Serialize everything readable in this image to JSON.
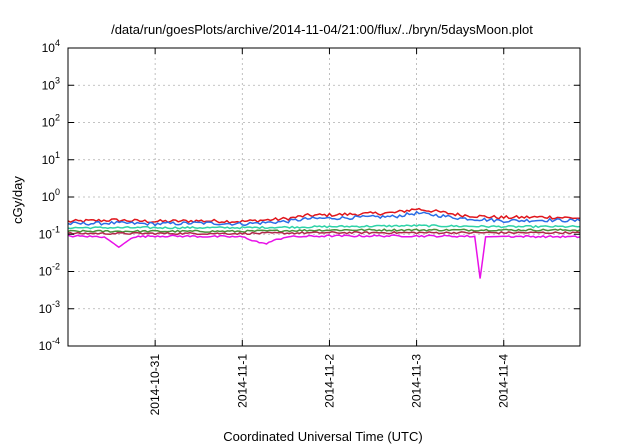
{
  "chart_data": {
    "type": "line",
    "title": "/data/run/goesPlots/archive/2014-11-04/21:00/flux/../bryn/5daysMoon.plot",
    "xlabel": "Coordinated Universal Time (UTC)",
    "ylabel": "cGy/day",
    "yscale": "log",
    "ylim": [
      0.0001,
      10000
    ],
    "xlim": [
      "2014-10-30T00:00",
      "2014-11-04T21:00"
    ],
    "grid": true,
    "y_ticks": [
      {
        "value": 0.0001,
        "base": "10",
        "exp": "-4"
      },
      {
        "value": 0.001,
        "base": "10",
        "exp": "-3"
      },
      {
        "value": 0.01,
        "base": "10",
        "exp": "-2"
      },
      {
        "value": 0.1,
        "base": "10",
        "exp": "-1"
      },
      {
        "value": 1,
        "base": "10",
        "exp": "0"
      },
      {
        "value": 10,
        "base": "10",
        "exp": "1"
      },
      {
        "value": 100,
        "base": "10",
        "exp": "2"
      },
      {
        "value": 1000,
        "base": "10",
        "exp": "3"
      },
      {
        "value": 10000,
        "base": "10",
        "exp": "4"
      }
    ],
    "x_ticks": [
      {
        "value": "2014-10-31T00:00",
        "label": "2014-10-31"
      },
      {
        "value": "2014-11-01T00:00",
        "label": "2014-11-1"
      },
      {
        "value": "2014-11-02T00:00",
        "label": "2014-11-2"
      },
      {
        "value": "2014-11-03T00:00",
        "label": "2014-11-3"
      },
      {
        "value": "2014-11-04T00:00",
        "label": "2014-11-4"
      }
    ],
    "series": [
      {
        "color": "#e0161c",
        "points": [
          [
            "2014-10-30T00:00",
            0.22
          ],
          [
            "2014-10-30T12:00",
            0.24
          ],
          [
            "2014-10-31T00:00",
            0.22
          ],
          [
            "2014-10-31T12:00",
            0.23
          ],
          [
            "2014-11-01T00:00",
            0.22
          ],
          [
            "2014-11-01T12:00",
            0.26
          ],
          [
            "2014-11-01T18:00",
            0.32
          ],
          [
            "2014-11-02T00:00",
            0.33
          ],
          [
            "2014-11-02T12:00",
            0.36
          ],
          [
            "2014-11-02T18:00",
            0.38
          ],
          [
            "2014-11-03T00:00",
            0.48
          ],
          [
            "2014-11-03T06:00",
            0.4
          ],
          [
            "2014-11-03T12:00",
            0.33
          ],
          [
            "2014-11-03T18:00",
            0.3
          ],
          [
            "2014-11-04T00:00",
            0.28
          ],
          [
            "2014-11-04T12:00",
            0.29
          ],
          [
            "2014-11-04T21:00",
            0.27
          ]
        ]
      },
      {
        "color": "#2a6de6",
        "points": [
          [
            "2014-10-30T00:00",
            0.19
          ],
          [
            "2014-10-30T12:00",
            0.2
          ],
          [
            "2014-10-31T00:00",
            0.19
          ],
          [
            "2014-10-31T12:00",
            0.2
          ],
          [
            "2014-11-01T00:00",
            0.19
          ],
          [
            "2014-11-01T12:00",
            0.22
          ],
          [
            "2014-11-01T18:00",
            0.26
          ],
          [
            "2014-11-02T00:00",
            0.27
          ],
          [
            "2014-11-02T12:00",
            0.29
          ],
          [
            "2014-11-02T18:00",
            0.3
          ],
          [
            "2014-11-03T00:00",
            0.37
          ],
          [
            "2014-11-03T06:00",
            0.32
          ],
          [
            "2014-11-03T12:00",
            0.27
          ],
          [
            "2014-11-03T18:00",
            0.25
          ],
          [
            "2014-11-04T00:00",
            0.23
          ],
          [
            "2014-11-04T12:00",
            0.24
          ],
          [
            "2014-11-04T21:00",
            0.23
          ]
        ]
      },
      {
        "color": "#2ed3a8",
        "points": [
          [
            "2014-10-30T00:00",
            0.15
          ],
          [
            "2014-10-31T00:00",
            0.15
          ],
          [
            "2014-11-01T00:00",
            0.15
          ],
          [
            "2014-11-02T00:00",
            0.16
          ],
          [
            "2014-11-03T00:00",
            0.17
          ],
          [
            "2014-11-04T00:00",
            0.16
          ],
          [
            "2014-11-04T21:00",
            0.16
          ]
        ]
      },
      {
        "color": "#4a8f3a",
        "points": [
          [
            "2014-10-30T00:00",
            0.12
          ],
          [
            "2014-10-31T00:00",
            0.12
          ],
          [
            "2014-11-01T00:00",
            0.12
          ],
          [
            "2014-11-02T00:00",
            0.13
          ],
          [
            "2014-11-03T00:00",
            0.13
          ],
          [
            "2014-11-04T00:00",
            0.13
          ],
          [
            "2014-11-04T21:00",
            0.13
          ]
        ]
      },
      {
        "color": "#b0284a",
        "points": [
          [
            "2014-10-30T00:00",
            0.105
          ],
          [
            "2014-10-31T00:00",
            0.105
          ],
          [
            "2014-11-01T00:00",
            0.105
          ],
          [
            "2014-11-02T00:00",
            0.11
          ],
          [
            "2014-11-03T00:00",
            0.11
          ],
          [
            "2014-11-04T00:00",
            0.11
          ],
          [
            "2014-11-04T21:00",
            0.11
          ]
        ]
      },
      {
        "color": "#e811e8",
        "points": [
          [
            "2014-10-30T00:00",
            0.09
          ],
          [
            "2014-10-30T10:00",
            0.085
          ],
          [
            "2014-10-30T14:00",
            0.045
          ],
          [
            "2014-10-30T18:00",
            0.085
          ],
          [
            "2014-10-31T00:00",
            0.09
          ],
          [
            "2014-11-01T00:00",
            0.085
          ],
          [
            "2014-11-01T06:00",
            0.055
          ],
          [
            "2014-11-01T12:00",
            0.085
          ],
          [
            "2014-11-02T00:00",
            0.09
          ],
          [
            "2014-11-03T00:00",
            0.09
          ],
          [
            "2014-11-03T16:00",
            0.088
          ],
          [
            "2014-11-03T17:30",
            0.0065
          ],
          [
            "2014-11-03T19:00",
            0.085
          ],
          [
            "2014-11-04T00:00",
            0.088
          ],
          [
            "2014-11-04T21:00",
            0.085
          ]
        ]
      }
    ]
  }
}
